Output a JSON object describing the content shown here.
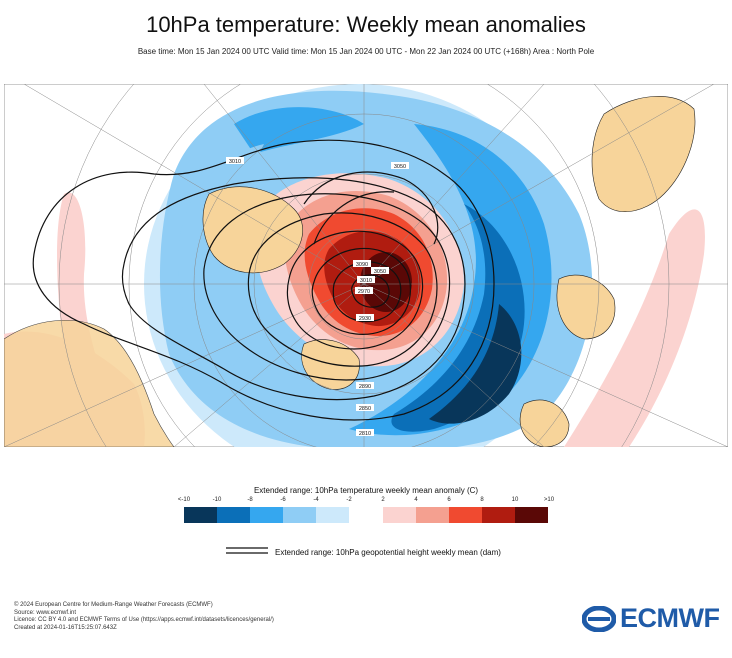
{
  "header": {
    "title": "10hPa temperature: Weekly mean anomalies",
    "subtitle": "Base time: Mon 15 Jan 2024 00 UTC Valid time: Mon 15 Jan 2024 00 UTC - Mon 22 Jan 2024 00 UTC (+168h) Area : North Pole"
  },
  "map": {
    "contour_labels": [
      "3010",
      "3050",
      "3090",
      "3050",
      "3010",
      "2970",
      "2930",
      "2890",
      "2850",
      "2810"
    ]
  },
  "legend": {
    "title": "Extended range: 10hPa temperature weekly mean anomaly (C)",
    "tick_labels": [
      "<-10",
      "-10",
      "-8",
      "-6",
      "-4",
      "-2",
      "2",
      "4",
      "6",
      "8",
      "10",
      ">10"
    ],
    "colors": {
      "neg": [
        "#08365a",
        "#0b6fb8",
        "#35a7ef",
        "#8fcdf5",
        "#cde9fb"
      ],
      "pos": [
        "#fbd3d0",
        "#f4a090",
        "#f04a30",
        "#b01c10",
        "#5a0806"
      ]
    },
    "contour_label": "Extended range: 10hPa geopotential height weekly mean (dam)"
  },
  "credits": {
    "lines": [
      "© 2024 European Centre for Medium-Range Weather Forecasts (ECMWF)",
      "Source: www.ecmwf.int",
      "Licence: CC BY 4.0 and ECMWF Terms of Use (https://apps.ecmwf.int/datasets/licences/general/)",
      "Created at 2024-01-16T15:25:07.643Z"
    ]
  },
  "logo": {
    "text": "ECMWF"
  }
}
